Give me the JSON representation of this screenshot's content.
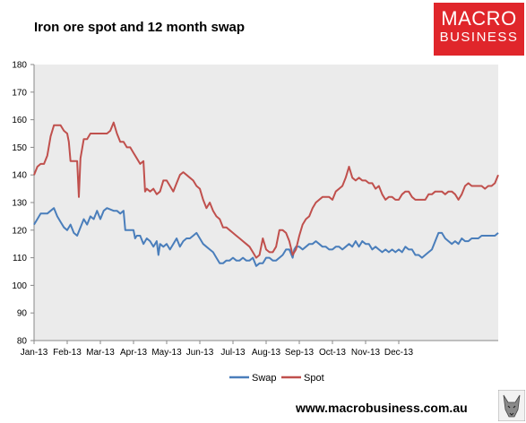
{
  "header": {
    "title": "Iron ore spot and 12 month swap"
  },
  "brand": {
    "line1": "MACRO",
    "line2": "BUSINESS",
    "color": "#e0262b"
  },
  "footer": {
    "url": "www.macrobusiness.com.au"
  },
  "chart_data": {
    "type": "line",
    "title": "Iron ore spot and 12 month swap",
    "xlabel": "",
    "ylabel": "",
    "ylim": [
      80,
      180
    ],
    "yticks": [
      80,
      90,
      100,
      110,
      120,
      130,
      140,
      150,
      160,
      170,
      180
    ],
    "x_tick_labels": [
      "Jan-13",
      "Feb-13",
      "Mar-13",
      "Apr-13",
      "May-13",
      "Jun-13",
      "Jul-13",
      "Aug-13",
      "Sep-13",
      "Oct-13",
      "Nov-13",
      "Dec-13"
    ],
    "grid": false,
    "legend": "bottom",
    "plot_background": "#ebebeb",
    "series": [
      {
        "name": "Swap",
        "color": "#4a7ebb",
        "points": [
          [
            0.0,
            122
          ],
          [
            0.1,
            124
          ],
          [
            0.2,
            126
          ],
          [
            0.4,
            126
          ],
          [
            0.5,
            127
          ],
          [
            0.6,
            128
          ],
          [
            0.7,
            125
          ],
          [
            0.8,
            123
          ],
          [
            0.9,
            121
          ],
          [
            1.0,
            120
          ],
          [
            1.1,
            122
          ],
          [
            1.2,
            119
          ],
          [
            1.3,
            118
          ],
          [
            1.4,
            121
          ],
          [
            1.5,
            124
          ],
          [
            1.6,
            122
          ],
          [
            1.7,
            125
          ],
          [
            1.8,
            124
          ],
          [
            1.9,
            127
          ],
          [
            2.0,
            124
          ],
          [
            2.1,
            127
          ],
          [
            2.2,
            128
          ],
          [
            2.4,
            127
          ],
          [
            2.5,
            127
          ],
          [
            2.6,
            126
          ],
          [
            2.7,
            127
          ],
          [
            2.75,
            120
          ],
          [
            2.85,
            120
          ],
          [
            3.0,
            120
          ],
          [
            3.05,
            117
          ],
          [
            3.1,
            118
          ],
          [
            3.2,
            118
          ],
          [
            3.3,
            115
          ],
          [
            3.4,
            117
          ],
          [
            3.5,
            116
          ],
          [
            3.6,
            114
          ],
          [
            3.7,
            116
          ],
          [
            3.75,
            111
          ],
          [
            3.8,
            115
          ],
          [
            3.9,
            114
          ],
          [
            4.0,
            115
          ],
          [
            4.1,
            113
          ],
          [
            4.2,
            115
          ],
          [
            4.3,
            117
          ],
          [
            4.4,
            114
          ],
          [
            4.5,
            116
          ],
          [
            4.6,
            117
          ],
          [
            4.7,
            117
          ],
          [
            4.8,
            118
          ],
          [
            4.9,
            119
          ],
          [
            5.0,
            117
          ],
          [
            5.1,
            115
          ],
          [
            5.2,
            114
          ],
          [
            5.3,
            113
          ],
          [
            5.4,
            112
          ],
          [
            5.5,
            110
          ],
          [
            5.6,
            108
          ],
          [
            5.7,
            108
          ],
          [
            5.8,
            109
          ],
          [
            5.9,
            109
          ],
          [
            6.0,
            110
          ],
          [
            6.1,
            109
          ],
          [
            6.2,
            109
          ],
          [
            6.3,
            110
          ],
          [
            6.4,
            109
          ],
          [
            6.5,
            109
          ],
          [
            6.6,
            110
          ],
          [
            6.7,
            107
          ],
          [
            6.8,
            108
          ],
          [
            6.9,
            108
          ],
          [
            7.0,
            110
          ],
          [
            7.1,
            110
          ],
          [
            7.2,
            109
          ],
          [
            7.3,
            109
          ],
          [
            7.4,
            110
          ],
          [
            7.5,
            111
          ],
          [
            7.6,
            113
          ],
          [
            7.7,
            113
          ],
          [
            7.8,
            110
          ],
          [
            7.85,
            113
          ],
          [
            7.9,
            114
          ],
          [
            8.0,
            114
          ],
          [
            8.1,
            113
          ],
          [
            8.2,
            114
          ],
          [
            8.3,
            115
          ],
          [
            8.4,
            115
          ],
          [
            8.5,
            116
          ],
          [
            8.6,
            115
          ],
          [
            8.7,
            114
          ],
          [
            8.8,
            114
          ],
          [
            8.9,
            113
          ],
          [
            9.0,
            113
          ],
          [
            9.1,
            114
          ],
          [
            9.2,
            114
          ],
          [
            9.3,
            113
          ],
          [
            9.4,
            114
          ],
          [
            9.5,
            115
          ],
          [
            9.6,
            114
          ],
          [
            9.7,
            116
          ],
          [
            9.8,
            114
          ],
          [
            9.9,
            116
          ],
          [
            10.0,
            115
          ],
          [
            10.1,
            115
          ],
          [
            10.2,
            113
          ],
          [
            10.3,
            114
          ],
          [
            10.4,
            113
          ],
          [
            10.5,
            112
          ],
          [
            10.6,
            113
          ],
          [
            10.7,
            112
          ],
          [
            10.8,
            113
          ],
          [
            10.9,
            112
          ],
          [
            11.0,
            113
          ],
          [
            11.1,
            112
          ],
          [
            11.2,
            114
          ],
          [
            11.3,
            113
          ],
          [
            11.4,
            113
          ],
          [
            11.5,
            111
          ],
          [
            11.6,
            111
          ],
          [
            11.7,
            110
          ],
          [
            11.8,
            111
          ],
          [
            11.9,
            112
          ],
          [
            12.0,
            113
          ],
          [
            12.1,
            116
          ],
          [
            12.2,
            119
          ],
          [
            12.3,
            119
          ],
          [
            12.4,
            117
          ],
          [
            12.5,
            116
          ],
          [
            12.6,
            115
          ],
          [
            12.7,
            116
          ],
          [
            12.8,
            115
          ],
          [
            12.9,
            117
          ],
          [
            13.0,
            116
          ],
          [
            13.1,
            116
          ],
          [
            13.2,
            117
          ],
          [
            13.3,
            117
          ],
          [
            13.4,
            117
          ],
          [
            13.5,
            118
          ],
          [
            13.6,
            118
          ],
          [
            13.7,
            118
          ],
          [
            13.8,
            118
          ],
          [
            13.9,
            118
          ],
          [
            14.0,
            119
          ]
        ]
      },
      {
        "name": "Spot",
        "color": "#c0504d",
        "points": [
          [
            0.0,
            140
          ],
          [
            0.1,
            143
          ],
          [
            0.2,
            144
          ],
          [
            0.3,
            144
          ],
          [
            0.4,
            147
          ],
          [
            0.5,
            154
          ],
          [
            0.6,
            158
          ],
          [
            0.7,
            158
          ],
          [
            0.8,
            158
          ],
          [
            0.9,
            156
          ],
          [
            1.0,
            155
          ],
          [
            1.05,
            152
          ],
          [
            1.1,
            145
          ],
          [
            1.2,
            145
          ],
          [
            1.3,
            145
          ],
          [
            1.35,
            132
          ],
          [
            1.4,
            146
          ],
          [
            1.5,
            153
          ],
          [
            1.6,
            153
          ],
          [
            1.7,
            155
          ],
          [
            1.8,
            155
          ],
          [
            1.9,
            155
          ],
          [
            2.0,
            155
          ],
          [
            2.1,
            155
          ],
          [
            2.2,
            155
          ],
          [
            2.3,
            156
          ],
          [
            2.4,
            159
          ],
          [
            2.5,
            155
          ],
          [
            2.6,
            152
          ],
          [
            2.7,
            152
          ],
          [
            2.8,
            150
          ],
          [
            2.9,
            150
          ],
          [
            3.0,
            148
          ],
          [
            3.1,
            146
          ],
          [
            3.2,
            144
          ],
          [
            3.3,
            145
          ],
          [
            3.35,
            134
          ],
          [
            3.4,
            135
          ],
          [
            3.5,
            134
          ],
          [
            3.6,
            135
          ],
          [
            3.7,
            133
          ],
          [
            3.8,
            134
          ],
          [
            3.9,
            138
          ],
          [
            4.0,
            138
          ],
          [
            4.1,
            136
          ],
          [
            4.2,
            134
          ],
          [
            4.3,
            137
          ],
          [
            4.4,
            140
          ],
          [
            4.5,
            141
          ],
          [
            4.6,
            140
          ],
          [
            4.7,
            139
          ],
          [
            4.8,
            138
          ],
          [
            4.9,
            136
          ],
          [
            5.0,
            135
          ],
          [
            5.1,
            131
          ],
          [
            5.2,
            128
          ],
          [
            5.3,
            130
          ],
          [
            5.4,
            127
          ],
          [
            5.5,
            125
          ],
          [
            5.6,
            124
          ],
          [
            5.7,
            121
          ],
          [
            5.8,
            121
          ],
          [
            5.9,
            120
          ],
          [
            6.0,
            119
          ],
          [
            6.1,
            118
          ],
          [
            6.2,
            117
          ],
          [
            6.3,
            116
          ],
          [
            6.4,
            115
          ],
          [
            6.5,
            114
          ],
          [
            6.6,
            112
          ],
          [
            6.7,
            110
          ],
          [
            6.8,
            111
          ],
          [
            6.9,
            117
          ],
          [
            7.0,
            113
          ],
          [
            7.1,
            112
          ],
          [
            7.2,
            112
          ],
          [
            7.3,
            114
          ],
          [
            7.4,
            120
          ],
          [
            7.5,
            120
          ],
          [
            7.6,
            119
          ],
          [
            7.7,
            116
          ],
          [
            7.8,
            111
          ],
          [
            7.9,
            113
          ],
          [
            8.0,
            118
          ],
          [
            8.1,
            122
          ],
          [
            8.2,
            124
          ],
          [
            8.3,
            125
          ],
          [
            8.4,
            128
          ],
          [
            8.5,
            130
          ],
          [
            8.6,
            131
          ],
          [
            8.7,
            132
          ],
          [
            8.8,
            132
          ],
          [
            8.9,
            132
          ],
          [
            9.0,
            131
          ],
          [
            9.1,
            134
          ],
          [
            9.2,
            135
          ],
          [
            9.3,
            136
          ],
          [
            9.4,
            139
          ],
          [
            9.5,
            143
          ],
          [
            9.6,
            139
          ],
          [
            9.7,
            138
          ],
          [
            9.8,
            139
          ],
          [
            9.9,
            138
          ],
          [
            10.0,
            138
          ],
          [
            10.1,
            137
          ],
          [
            10.2,
            137
          ],
          [
            10.3,
            135
          ],
          [
            10.4,
            136
          ],
          [
            10.5,
            133
          ],
          [
            10.6,
            131
          ],
          [
            10.7,
            132
          ],
          [
            10.8,
            132
          ],
          [
            10.9,
            131
          ],
          [
            11.0,
            131
          ],
          [
            11.1,
            133
          ],
          [
            11.2,
            134
          ],
          [
            11.3,
            134
          ],
          [
            11.4,
            132
          ],
          [
            11.5,
            131
          ],
          [
            11.6,
            131
          ],
          [
            11.7,
            131
          ],
          [
            11.8,
            131
          ],
          [
            11.9,
            133
          ],
          [
            12.0,
            133
          ],
          [
            12.1,
            134
          ],
          [
            12.2,
            134
          ],
          [
            12.3,
            134
          ],
          [
            12.4,
            133
          ],
          [
            12.5,
            134
          ],
          [
            12.6,
            134
          ],
          [
            12.7,
            133
          ],
          [
            12.8,
            131
          ],
          [
            12.9,
            133
          ],
          [
            13.0,
            136
          ],
          [
            13.1,
            137
          ],
          [
            13.2,
            136
          ],
          [
            13.3,
            136
          ],
          [
            13.4,
            136
          ],
          [
            13.5,
            136
          ],
          [
            13.6,
            135
          ],
          [
            13.7,
            136
          ],
          [
            13.8,
            136
          ],
          [
            13.9,
            137
          ],
          [
            14.0,
            140
          ]
        ]
      }
    ]
  }
}
